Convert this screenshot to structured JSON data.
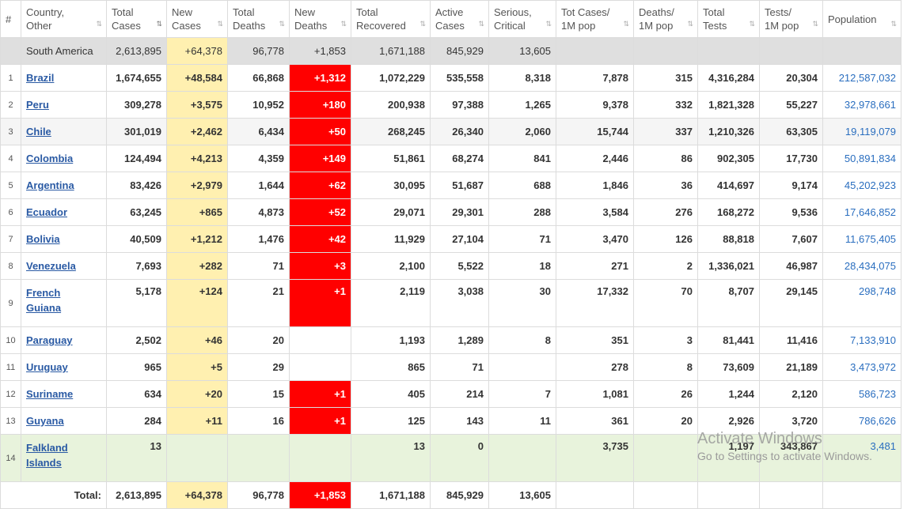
{
  "headers": [
    {
      "label": "#",
      "sort": false
    },
    {
      "label": "Country,\nOther",
      "sort": true
    },
    {
      "label": "Total\nCases",
      "sort": true,
      "active": true
    },
    {
      "label": "New\nCases",
      "sort": true
    },
    {
      "label": "Total\nDeaths",
      "sort": true
    },
    {
      "label": "New\nDeaths",
      "sort": true
    },
    {
      "label": "Total\nRecovered",
      "sort": true
    },
    {
      "label": "Active\nCases",
      "sort": true
    },
    {
      "label": "Serious,\nCritical",
      "sort": true
    },
    {
      "label": "Tot Cases/\n1M pop",
      "sort": true
    },
    {
      "label": "Deaths/\n1M pop",
      "sort": true
    },
    {
      "label": "Total\nTests",
      "sort": true
    },
    {
      "label": "Tests/\n1M pop",
      "sort": true
    },
    {
      "label": "Population",
      "sort": true
    }
  ],
  "sort_glyph": "⇅",
  "region": {
    "name": "South America",
    "total_cases": "2,613,895",
    "new_cases": "+64,378",
    "total_deaths": "96,778",
    "new_deaths": "+1,853",
    "total_recovered": "1,671,188",
    "active_cases": "845,929",
    "serious": "13,605"
  },
  "rows": [
    {
      "idx": "1",
      "country": "Brazil",
      "total_cases": "1,674,655",
      "new_cases": "+48,584",
      "total_deaths": "66,868",
      "new_deaths": "+1,312",
      "total_recovered": "1,072,229",
      "active_cases": "535,558",
      "serious": "8,318",
      "cases_per_1m": "7,878",
      "deaths_per_1m": "315",
      "total_tests": "4,316,284",
      "tests_per_1m": "20,304",
      "population": "212,587,032"
    },
    {
      "idx": "2",
      "country": "Peru",
      "total_cases": "309,278",
      "new_cases": "+3,575",
      "total_deaths": "10,952",
      "new_deaths": "+180",
      "total_recovered": "200,938",
      "active_cases": "97,388",
      "serious": "1,265",
      "cases_per_1m": "9,378",
      "deaths_per_1m": "332",
      "total_tests": "1,821,328",
      "tests_per_1m": "55,227",
      "population": "32,978,661"
    },
    {
      "idx": "3",
      "country": "Chile",
      "total_cases": "301,019",
      "new_cases": "+2,462",
      "total_deaths": "6,434",
      "new_deaths": "+50",
      "total_recovered": "268,245",
      "active_cases": "26,340",
      "serious": "2,060",
      "cases_per_1m": "15,744",
      "deaths_per_1m": "337",
      "total_tests": "1,210,326",
      "tests_per_1m": "63,305",
      "population": "19,119,079"
    },
    {
      "idx": "4",
      "country": "Colombia",
      "total_cases": "124,494",
      "new_cases": "+4,213",
      "total_deaths": "4,359",
      "new_deaths": "+149",
      "total_recovered": "51,861",
      "active_cases": "68,274",
      "serious": "841",
      "cases_per_1m": "2,446",
      "deaths_per_1m": "86",
      "total_tests": "902,305",
      "tests_per_1m": "17,730",
      "population": "50,891,834"
    },
    {
      "idx": "5",
      "country": "Argentina",
      "total_cases": "83,426",
      "new_cases": "+2,979",
      "total_deaths": "1,644",
      "new_deaths": "+62",
      "total_recovered": "30,095",
      "active_cases": "51,687",
      "serious": "688",
      "cases_per_1m": "1,846",
      "deaths_per_1m": "36",
      "total_tests": "414,697",
      "tests_per_1m": "9,174",
      "population": "45,202,923"
    },
    {
      "idx": "6",
      "country": "Ecuador",
      "total_cases": "63,245",
      "new_cases": "+865",
      "total_deaths": "4,873",
      "new_deaths": "+52",
      "total_recovered": "29,071",
      "active_cases": "29,301",
      "serious": "288",
      "cases_per_1m": "3,584",
      "deaths_per_1m": "276",
      "total_tests": "168,272",
      "tests_per_1m": "9,536",
      "population": "17,646,852"
    },
    {
      "idx": "7",
      "country": "Bolivia",
      "total_cases": "40,509",
      "new_cases": "+1,212",
      "total_deaths": "1,476",
      "new_deaths": "+42",
      "total_recovered": "11,929",
      "active_cases": "27,104",
      "serious": "71",
      "cases_per_1m": "3,470",
      "deaths_per_1m": "126",
      "total_tests": "88,818",
      "tests_per_1m": "7,607",
      "population": "11,675,405"
    },
    {
      "idx": "8",
      "country": "Venezuela",
      "total_cases": "7,693",
      "new_cases": "+282",
      "total_deaths": "71",
      "new_deaths": "+3",
      "total_recovered": "2,100",
      "active_cases": "5,522",
      "serious": "18",
      "cases_per_1m": "271",
      "deaths_per_1m": "2",
      "total_tests": "1,336,021",
      "tests_per_1m": "46,987",
      "population": "28,434,075"
    },
    {
      "idx": "9",
      "country": "French Guiana",
      "total_cases": "5,178",
      "new_cases": "+124",
      "total_deaths": "21",
      "new_deaths": "+1",
      "total_recovered": "2,119",
      "active_cases": "3,038",
      "serious": "30",
      "cases_per_1m": "17,332",
      "deaths_per_1m": "70",
      "total_tests": "8,707",
      "tests_per_1m": "29,145",
      "population": "298,748"
    },
    {
      "idx": "10",
      "country": "Paraguay",
      "total_cases": "2,502",
      "new_cases": "+46",
      "total_deaths": "20",
      "new_deaths": "",
      "total_recovered": "1,193",
      "active_cases": "1,289",
      "serious": "8",
      "cases_per_1m": "351",
      "deaths_per_1m": "3",
      "total_tests": "81,441",
      "tests_per_1m": "11,416",
      "population": "7,133,910"
    },
    {
      "idx": "11",
      "country": "Uruguay",
      "total_cases": "965",
      "new_cases": "+5",
      "total_deaths": "29",
      "new_deaths": "",
      "total_recovered": "865",
      "active_cases": "71",
      "serious": "",
      "cases_per_1m": "278",
      "deaths_per_1m": "8",
      "total_tests": "73,609",
      "tests_per_1m": "21,189",
      "population": "3,473,972"
    },
    {
      "idx": "12",
      "country": "Suriname",
      "total_cases": "634",
      "new_cases": "+20",
      "total_deaths": "15",
      "new_deaths": "+1",
      "total_recovered": "405",
      "active_cases": "214",
      "serious": "7",
      "cases_per_1m": "1,081",
      "deaths_per_1m": "26",
      "total_tests": "1,244",
      "tests_per_1m": "2,120",
      "population": "586,723"
    },
    {
      "idx": "13",
      "country": "Guyana",
      "total_cases": "284",
      "new_cases": "+11",
      "total_deaths": "16",
      "new_deaths": "+1",
      "total_recovered": "125",
      "active_cases": "143",
      "serious": "11",
      "cases_per_1m": "361",
      "deaths_per_1m": "20",
      "total_tests": "2,926",
      "tests_per_1m": "3,720",
      "population": "786,626"
    },
    {
      "idx": "14",
      "country": "Falkland Islands",
      "total_cases": "13",
      "new_cases": "",
      "total_deaths": "",
      "new_deaths": "",
      "total_recovered": "13",
      "active_cases": "0",
      "serious": "",
      "cases_per_1m": "3,735",
      "deaths_per_1m": "",
      "total_tests": "1,197",
      "tests_per_1m": "343,867",
      "population": "3,481"
    }
  ],
  "total": {
    "label": "Total:",
    "total_cases": "2,613,895",
    "new_cases": "+64,378",
    "total_deaths": "96,778",
    "new_deaths": "+1,853",
    "total_recovered": "1,671,188",
    "active_cases": "845,929",
    "serious": "13,605"
  },
  "watermark": {
    "line1": "Activate Windows",
    "line2": "Go to Settings to activate Windows."
  }
}
